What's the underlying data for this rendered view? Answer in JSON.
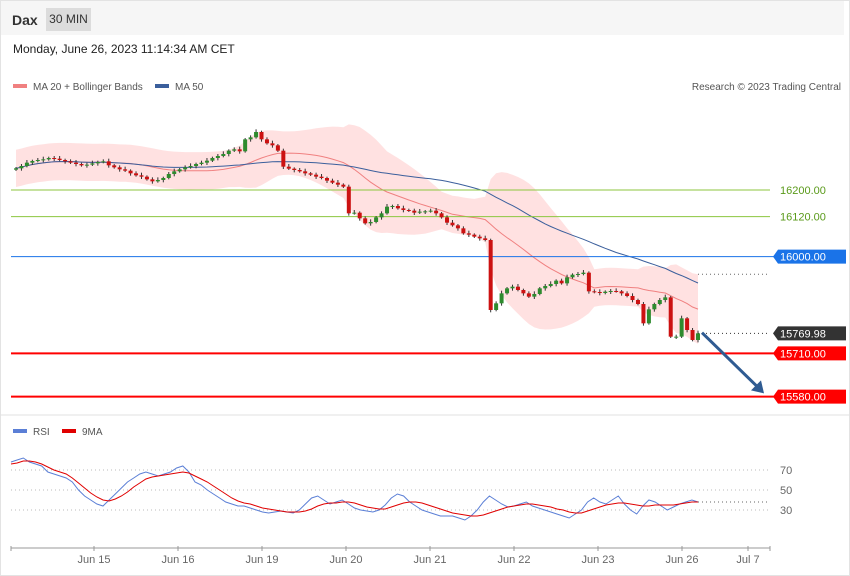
{
  "header": {
    "symbol": "Dax",
    "timeframe": "30 MIN",
    "timestamp": "Monday, June 26, 2023 11:14:34 AM CET"
  },
  "legend": {
    "ma20": "MA 20 + Bollinger Bands",
    "ma50": "MA 50",
    "research": "Research © 2023 Trading Central",
    "rsi": "RSI",
    "rsi_ma": "9MA"
  },
  "colors": {
    "bull": "#2e8b2e",
    "bear": "#cc1111",
    "bollinger_fill": "#ffd9d9",
    "ma20": "#f08080",
    "ma50": "#3b5f9c",
    "support": "#ff0000",
    "pivot": "#1a73e8",
    "resistance": "#8cc63f",
    "last_price": "#333333",
    "rsi": "#5b7fd6",
    "rsi_ma": "#e00000",
    "arrow": "#2f5b92"
  },
  "chart_data": [
    {
      "type": "candlestick",
      "title": "Dax 30 MIN",
      "x_ticks": [
        "Jun 15",
        "Jun 16",
        "Jun 19",
        "Jun 20",
        "Jun 21",
        "Jun 22",
        "Jun 23",
        "Jun 26",
        "Jul 7"
      ],
      "ylim": [
        15540,
        16470
      ],
      "levels": [
        {
          "value": 16200.0,
          "label": "16200.00",
          "kind": "resistance"
        },
        {
          "value": 16120.0,
          "label": "16120.00",
          "kind": "resistance"
        },
        {
          "value": 16000.0,
          "label": "16000.00",
          "kind": "pivot"
        },
        {
          "value": 15769.98,
          "label": "15769.98",
          "kind": "last"
        },
        {
          "value": 15710.0,
          "label": "15710.00",
          "kind": "support"
        },
        {
          "value": 15580.0,
          "label": "15580.00",
          "kind": "support"
        }
      ],
      "forecast_arrow": {
        "from": 15772,
        "to": 15590
      },
      "close_path": [
        16265,
        16272,
        16282,
        16287,
        16290,
        16292,
        16296,
        16294,
        16290,
        16286,
        16282,
        16278,
        16274,
        16276,
        16280,
        16284,
        16286,
        16274,
        16268,
        16262,
        16258,
        16250,
        16244,
        16240,
        16232,
        16226,
        16230,
        16236,
        16248,
        16256,
        16262,
        16268,
        16272,
        16278,
        16282,
        16288,
        16296,
        16302,
        16308,
        16318,
        16322,
        16316,
        16352,
        16358,
        16374,
        16352,
        16340,
        16334,
        16318,
        16270,
        16264,
        16260,
        16256,
        16250,
        16246,
        16240,
        16236,
        16228,
        16222,
        16216,
        16210,
        16130,
        16132,
        16115,
        16100,
        16104,
        16118,
        16130,
        16150,
        16152,
        16145,
        16140,
        16138,
        16132,
        16135,
        16136,
        16138,
        16130,
        16118,
        16102,
        16094,
        16085,
        16070,
        16066,
        16060,
        16055,
        16050,
        15840,
        15860,
        15890,
        15905,
        15910,
        15900,
        15890,
        15880,
        15888,
        15905,
        15912,
        15918,
        15928,
        15920,
        15938,
        15946,
        15948,
        15952,
        15896,
        15894,
        15891,
        15895,
        15897,
        15896,
        15890,
        15882,
        15870,
        15858,
        15800,
        15842,
        15858,
        15870,
        15878,
        15760,
        15760,
        15815,
        15780,
        15750,
        15770
      ]
    },
    {
      "type": "line",
      "title": "RSI",
      "y_ticks": [
        70,
        50,
        30
      ],
      "ylim": [
        0,
        100
      ],
      "series": [
        {
          "name": "RSI",
          "values": [
            78,
            80,
            82,
            78,
            76,
            74,
            68,
            66,
            64,
            62,
            58,
            50,
            44,
            40,
            36,
            34,
            40,
            46,
            52,
            58,
            62,
            66,
            68,
            66,
            64,
            66,
            68,
            72,
            74,
            68,
            58,
            55,
            50,
            46,
            42,
            38,
            36,
            34,
            34,
            32,
            30,
            28,
            27,
            28,
            29,
            28,
            27,
            30,
            36,
            42,
            44,
            40,
            36,
            38,
            40,
            36,
            32,
            30,
            29,
            28,
            30,
            35,
            42,
            46,
            44,
            38,
            34,
            30,
            28,
            26,
            24,
            24,
            24,
            22,
            20,
            24,
            30,
            38,
            44,
            40,
            36,
            33,
            34,
            36,
            38,
            34,
            32,
            30,
            28,
            26,
            24,
            22,
            26,
            30,
            38,
            42,
            38,
            36,
            40,
            44,
            36,
            30,
            26,
            34,
            40,
            38,
            34,
            30,
            33,
            36,
            38,
            40,
            38
          ]
        },
        {
          "name": "9MA",
          "values": [
            76,
            77,
            79,
            79,
            78,
            76,
            73,
            70,
            68,
            66,
            62,
            57,
            52,
            47,
            43,
            40,
            39,
            41,
            44,
            48,
            53,
            57,
            61,
            63,
            64,
            65,
            66,
            67,
            68,
            67,
            64,
            61,
            58,
            54,
            50,
            46,
            42,
            39,
            37,
            36,
            34,
            32,
            31,
            30,
            29,
            28,
            28,
            28,
            29,
            31,
            34,
            36,
            37,
            37,
            38,
            38,
            37,
            35,
            33,
            32,
            31,
            31,
            33,
            35,
            37,
            38,
            38,
            37,
            35,
            33,
            31,
            29,
            27,
            26,
            25,
            24,
            24,
            25,
            27,
            29,
            31,
            33,
            34,
            35,
            36,
            36,
            35,
            34,
            33,
            31,
            30,
            28,
            27,
            27,
            29,
            31,
            33,
            35,
            36,
            37,
            37,
            36,
            35,
            34,
            34,
            35,
            35,
            35,
            35,
            36,
            37,
            38,
            38
          ]
        }
      ]
    }
  ]
}
